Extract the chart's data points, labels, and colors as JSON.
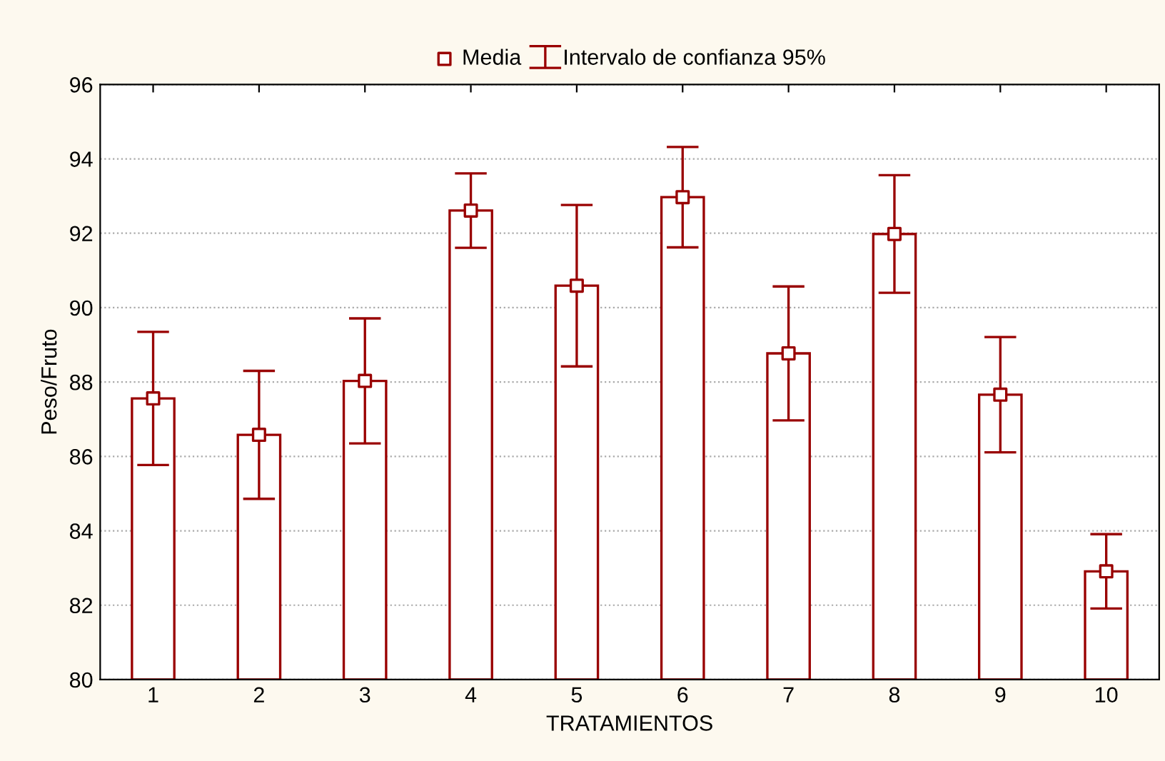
{
  "chart_data": {
    "type": "bar",
    "xlabel": "TRATAMIENTOS",
    "ylabel": "Peso/Fruto",
    "categories": [
      "1",
      "2",
      "3",
      "4",
      "5",
      "6",
      "7",
      "8",
      "9",
      "10"
    ],
    "series": [
      {
        "color": "#990000",
        "values": [
          87.56,
          86.58,
          88.03,
          92.61,
          90.59,
          92.97,
          88.77,
          91.98,
          87.66,
          82.91
        ]
      },
      {
        "type": "scatter",
        "name": "Media",
        "color": "#990000",
        "x": [
          "1",
          "2",
          "3",
          "4",
          "5",
          "6",
          "7",
          "8",
          "9",
          "10"
        ],
        "values": [
          87.56,
          86.58,
          88.03,
          92.61,
          90.59,
          92.97,
          88.77,
          91.98,
          87.66,
          82.91
        ],
        "errors": [
          1.79,
          1.72,
          1.68,
          1.0,
          2.17,
          1.35,
          1.8,
          1.58,
          1.55,
          1.0
        ]
      }
    ],
    "annotations": [
      "Intervalo de confianza 95%"
    ],
    "ylim": [
      80,
      96
    ],
    "yticks": [
      80,
      82,
      84,
      86,
      88,
      90,
      92,
      94,
      96
    ],
    "grid": "y",
    "legend": "top",
    "marker": "square"
  }
}
